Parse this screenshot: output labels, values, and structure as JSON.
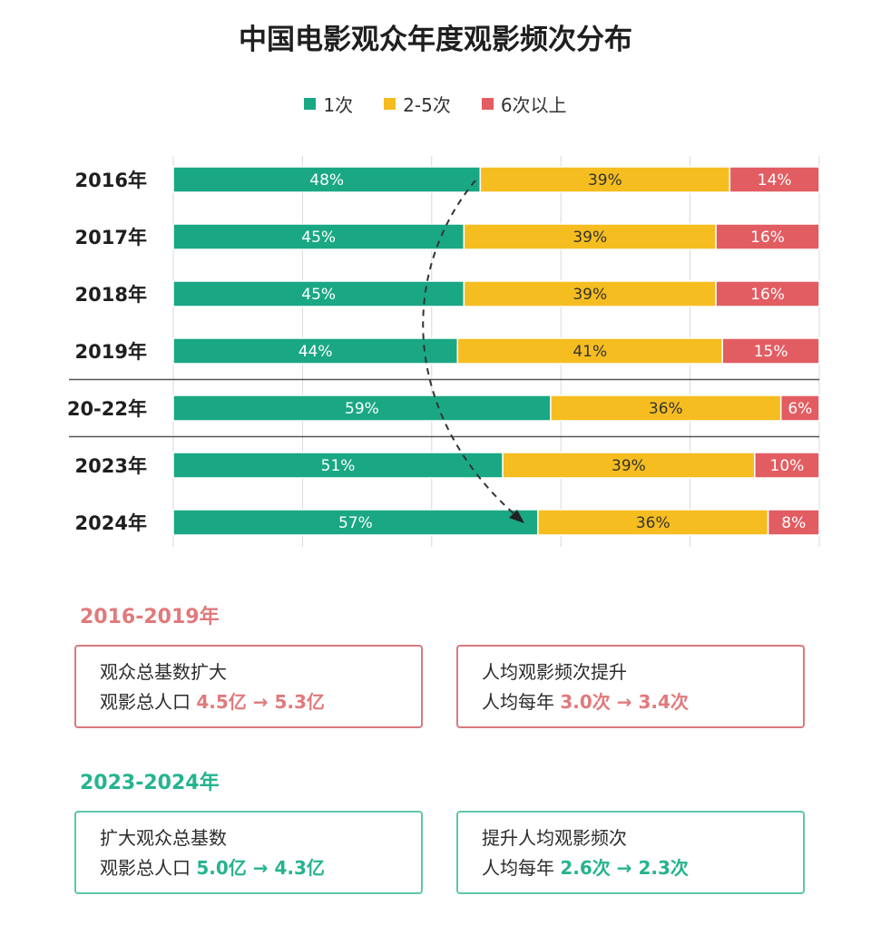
{
  "title": "中国电影观众年度观影频次分布",
  "legend": [
    {
      "label": "1次",
      "color": "#1aa784"
    },
    {
      "label": "2-5次",
      "color": "#f5bd1f"
    },
    {
      "label": "6次以上",
      "color": "#e25d62"
    }
  ],
  "chart_data": {
    "type": "bar",
    "orientation": "horizontal",
    "stacked": true,
    "categories": [
      "2016年",
      "2017年",
      "2018年",
      "2019年",
      "20-22年",
      "2023年",
      "2024年"
    ],
    "series": [
      {
        "name": "1次",
        "color": "#1aa784",
        "values": [
          48,
          45,
          45,
          44,
          59,
          51,
          57
        ]
      },
      {
        "name": "2-5次",
        "color": "#f5bd1f",
        "values": [
          39,
          39,
          39,
          41,
          36,
          39,
          36
        ]
      },
      {
        "name": "6次以上",
        "color": "#e25d62",
        "values": [
          14,
          16,
          16,
          15,
          6,
          10,
          8
        ]
      }
    ],
    "value_suffix": "%",
    "legend_position": "top",
    "grid": true,
    "separators_after_categories": [
      "2019年",
      "20-22年"
    ],
    "annotation": "dashed arrow from 2016年 to 2024年"
  },
  "sections": [
    {
      "title": "2016-2019年",
      "color": "#e07a7c",
      "cards": [
        {
          "line1": "观众总基数扩大",
          "prefix": "观影总人口 ",
          "value": "4.5亿 → 5.3亿"
        },
        {
          "line1": "人均观影频次提升",
          "prefix": "人均每年 ",
          "value": "3.0次 → 3.4次"
        }
      ]
    },
    {
      "title": "2023-2024年",
      "color": "#26b38f",
      "cards": [
        {
          "line1": "扩大观众总基数",
          "prefix": "观影总人口 ",
          "value": "5.0亿 → 4.3亿"
        },
        {
          "line1": "提升人均观影频次",
          "prefix": "人均每年 ",
          "value": "2.6次 → 2.3次"
        }
      ]
    }
  ]
}
